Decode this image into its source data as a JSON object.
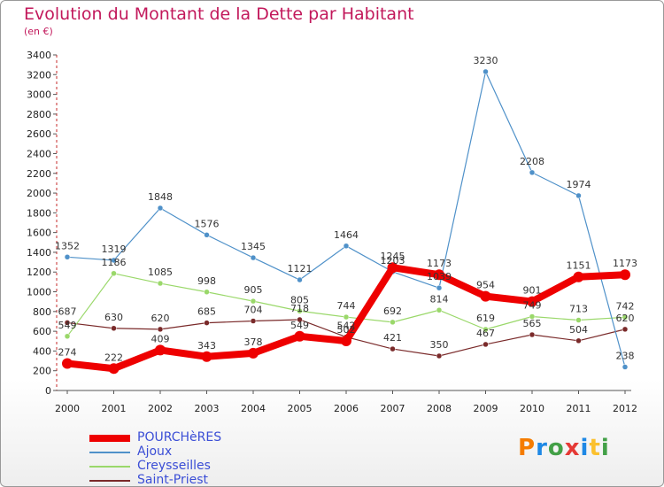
{
  "title": "Evolution du Montant de la Dette par Habitant",
  "subtitle": "(en €)",
  "brand": {
    "letters": [
      "P",
      "r",
      "o",
      "x",
      "i",
      "t",
      "i"
    ],
    "colors": [
      "#f57c00",
      "#1e88e5",
      "#43a047",
      "#e53935",
      "#1e88e5",
      "#fbc02d",
      "#43a047"
    ]
  },
  "chart_data": {
    "type": "line",
    "x": [
      "2000",
      "2001",
      "2002",
      "2003",
      "2004",
      "2005",
      "2006",
      "2007",
      "2008",
      "2009",
      "2010",
      "2011",
      "2012"
    ],
    "ylim": [
      0,
      3400
    ],
    "yticks": [
      "0",
      "200",
      "400",
      "600",
      "800",
      "1000",
      "1200",
      "1400",
      "1600",
      "1800",
      "2000",
      "2200",
      "2400",
      "2600",
      "2800",
      "3000",
      "3200",
      "3400"
    ],
    "grid": false,
    "legend_position": "bottom-left",
    "series": [
      {
        "name": "POURCHèRES",
        "color": "#ee0000",
        "width": 8,
        "values": [
          274,
          222,
          409,
          343,
          378,
          549,
          502,
          1245,
          1173,
          954,
          901,
          1151,
          1173
        ]
      },
      {
        "name": "Ajoux",
        "color": "#4f91c9",
        "width": 1.2,
        "values": [
          1352,
          1319,
          1848,
          1576,
          1345,
          1121,
          1464,
          1203,
          1039,
          3230,
          2208,
          1974,
          238
        ]
      },
      {
        "name": "Creysseilles",
        "color": "#9ad86a",
        "width": 1.2,
        "values": [
          549,
          1186,
          1085,
          998,
          905,
          805,
          744,
          692,
          814,
          619,
          749,
          713,
          742
        ]
      },
      {
        "name": "Saint-Priest",
        "color": "#7a2a2a",
        "width": 1.2,
        "values": [
          687,
          630,
          620,
          685,
          704,
          718,
          542,
          421,
          350,
          467,
          565,
          504,
          620
        ]
      }
    ]
  }
}
